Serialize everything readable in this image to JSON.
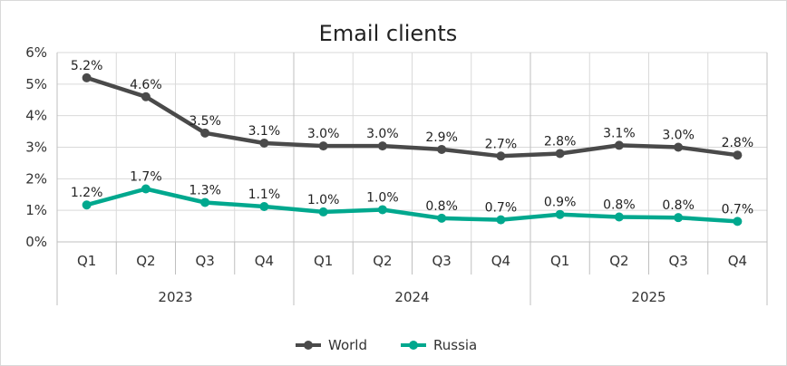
{
  "chart_data": {
    "type": "line",
    "title": "Email clients",
    "xlabel": "",
    "ylabel": "",
    "categories": [
      "Q1",
      "Q2",
      "Q3",
      "Q4",
      "Q1",
      "Q2",
      "Q3",
      "Q4",
      "Q1",
      "Q2",
      "Q3",
      "Q4"
    ],
    "groups": [
      {
        "label": "2023",
        "quarters": 4
      },
      {
        "label": "2024",
        "quarters": 4
      },
      {
        "label": "2025",
        "quarters": 4
      }
    ],
    "yticks": [
      "0%",
      "1%",
      "2%",
      "3%",
      "4%",
      "5%",
      "6%"
    ],
    "ylim": [
      0,
      6
    ],
    "grid": true,
    "legend_position": "bottom",
    "series": [
      {
        "name": "World",
        "color": "#4a4a4a",
        "values": [
          5.2,
          4.6,
          3.45,
          3.13,
          3.04,
          3.04,
          2.93,
          2.72,
          2.8,
          3.06,
          3.0,
          2.75
        ],
        "labels": [
          "5.2%",
          "4.6%",
          "3.5%",
          "3.1%",
          "3.0%",
          "3.0%",
          "2.9%",
          "2.7%",
          "2.8%",
          "3.1%",
          "3.0%",
          "2.8%"
        ]
      },
      {
        "name": "Russia",
        "color": "#00a88e",
        "values": [
          1.17,
          1.68,
          1.25,
          1.12,
          0.95,
          1.02,
          0.75,
          0.7,
          0.87,
          0.79,
          0.77,
          0.65
        ],
        "labels": [
          "1.2%",
          "1.7%",
          "1.3%",
          "1.1%",
          "1.0%",
          "1.0%",
          "0.8%",
          "0.7%",
          "0.9%",
          "0.8%",
          "0.8%",
          "0.7%"
        ]
      }
    ]
  }
}
